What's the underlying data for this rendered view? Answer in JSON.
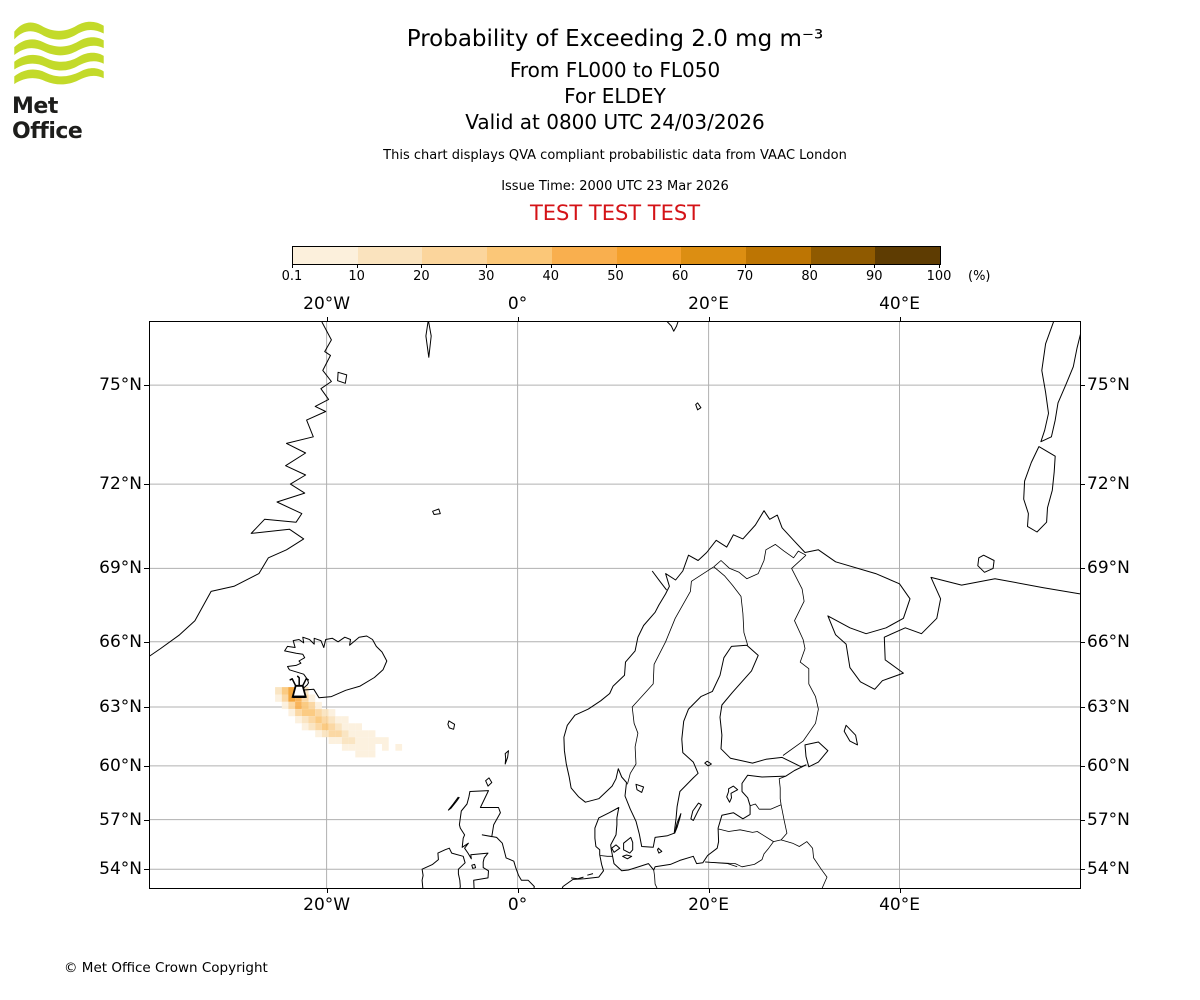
{
  "header": {
    "logo_text": "Met Office",
    "logo_green": "#c3da2a",
    "title": "Probability of Exceeding 2.0 mg m⁻³",
    "subtitle_lines": [
      "From FL000 to FL050",
      "For ELDEY",
      "Valid at 0800 UTC 24/03/2026"
    ],
    "note": "This chart displays QVA compliant probabilistic data from VAAC London",
    "issue_time": "Issue Time: 2000 UTC 23 Mar 2026",
    "test_banner": "TEST TEST TEST",
    "test_color": "#d41317"
  },
  "colorbar": {
    "tick_labels": [
      "0.1",
      "10",
      "20",
      "30",
      "40",
      "50",
      "60",
      "70",
      "80",
      "90",
      "100"
    ],
    "unit_label": "(%)",
    "colors": [
      "#fcf0dc",
      "#fae3be",
      "#fbd59c",
      "#fbc778",
      "#f9af4e",
      "#f4a02c",
      "#dc8e12",
      "#bd7503",
      "#8f5a00",
      "#5e3c02"
    ]
  },
  "map": {
    "lon_labels": [
      {
        "label": "20°W",
        "lon": -20
      },
      {
        "label": "0°",
        "lon": 0
      },
      {
        "label": "20°E",
        "lon": 20
      },
      {
        "label": "40°E",
        "lon": 40
      }
    ],
    "lat_labels": [
      {
        "label": "75°N",
        "lat": 75
      },
      {
        "label": "72°N",
        "lat": 72
      },
      {
        "label": "69°N",
        "lat": 69
      },
      {
        "label": "66°N",
        "lat": 66
      },
      {
        "label": "63°N",
        "lat": 63
      },
      {
        "label": "60°N",
        "lat": 60
      },
      {
        "label": "57°N",
        "lat": 57
      },
      {
        "label": "54°N",
        "lat": 54
      }
    ],
    "gridline_color": "#b0b0b0"
  },
  "chart_data": {
    "type": "heatmap",
    "title": "Probability of Exceeding 2.0 mg m⁻³",
    "flight_levels": "FL000 to FL050",
    "volcano": {
      "name": "ELDEY",
      "lat": 63.73,
      "lon": -22.87
    },
    "valid_time": "0800 UTC 24/03/2026",
    "issue_time": "2000 UTC 23 Mar 2026",
    "units": "%",
    "probability_scale_pct": [
      0.1,
      10,
      20,
      30,
      40,
      50,
      60,
      70,
      80,
      90,
      100
    ],
    "extent": {
      "lon_min": -38.5,
      "lon_max": 58.9,
      "lat_min": 52.8,
      "lat_max": 76.65
    },
    "grid_lons": [
      -20,
      0,
      20,
      40
    ],
    "grid_lats": [
      75,
      72,
      69,
      66,
      63,
      60,
      57,
      54
    ],
    "plume": {
      "lon0": -25.4,
      "dlon": 0.7,
      "lat0": 63.95,
      "dlat": 0.35,
      "bucket_ranges_pct": [
        "0.1-10",
        "10-20",
        "20-30",
        "30-40",
        "40-50",
        "50-60"
      ],
      "cells": [
        [
          0,
          0,
          2
        ],
        [
          1,
          0,
          4
        ],
        [
          2,
          0,
          6
        ],
        [
          3,
          0,
          4
        ],
        [
          4,
          0,
          2
        ],
        [
          0,
          1,
          1
        ],
        [
          1,
          1,
          3
        ],
        [
          2,
          1,
          6
        ],
        [
          3,
          1,
          5
        ],
        [
          4,
          1,
          3
        ],
        [
          5,
          1,
          1
        ],
        [
          1,
          2,
          1
        ],
        [
          2,
          2,
          3
        ],
        [
          3,
          2,
          5
        ],
        [
          4,
          2,
          4
        ],
        [
          5,
          2,
          3
        ],
        [
          6,
          2,
          1
        ],
        [
          2,
          3,
          1
        ],
        [
          3,
          3,
          3
        ],
        [
          4,
          3,
          4
        ],
        [
          5,
          3,
          4
        ],
        [
          6,
          3,
          3
        ],
        [
          7,
          3,
          2
        ],
        [
          8,
          3,
          1
        ],
        [
          3,
          4,
          1
        ],
        [
          4,
          4,
          2
        ],
        [
          5,
          4,
          3
        ],
        [
          6,
          4,
          4
        ],
        [
          7,
          4,
          3
        ],
        [
          8,
          4,
          2
        ],
        [
          9,
          4,
          1
        ],
        [
          10,
          4,
          1
        ],
        [
          4,
          5,
          1
        ],
        [
          5,
          5,
          2
        ],
        [
          6,
          5,
          3
        ],
        [
          7,
          5,
          4
        ],
        [
          8,
          5,
          3
        ],
        [
          9,
          5,
          2
        ],
        [
          10,
          5,
          1
        ],
        [
          11,
          5,
          1
        ],
        [
          12,
          5,
          1
        ],
        [
          6,
          6,
          1
        ],
        [
          7,
          6,
          2
        ],
        [
          8,
          6,
          3
        ],
        [
          9,
          6,
          3
        ],
        [
          10,
          6,
          2
        ],
        [
          11,
          6,
          1
        ],
        [
          12,
          6,
          1
        ],
        [
          13,
          6,
          1
        ],
        [
          14,
          6,
          1
        ],
        [
          8,
          7,
          1
        ],
        [
          9,
          7,
          1
        ],
        [
          10,
          7,
          2
        ],
        [
          11,
          7,
          2
        ],
        [
          12,
          7,
          1
        ],
        [
          13,
          7,
          1
        ],
        [
          14,
          7,
          1
        ],
        [
          15,
          7,
          1
        ],
        [
          16,
          7,
          1
        ],
        [
          10,
          8,
          1
        ],
        [
          11,
          8,
          1
        ],
        [
          12,
          8,
          1
        ],
        [
          13,
          8,
          1
        ],
        [
          14,
          8,
          1
        ],
        [
          16,
          8,
          1
        ],
        [
          18,
          8,
          1
        ],
        [
          12,
          9,
          1
        ],
        [
          13,
          9,
          1
        ],
        [
          14,
          9,
          1
        ]
      ]
    }
  },
  "footer": {
    "copyright": "© Met Office Crown Copyright"
  }
}
